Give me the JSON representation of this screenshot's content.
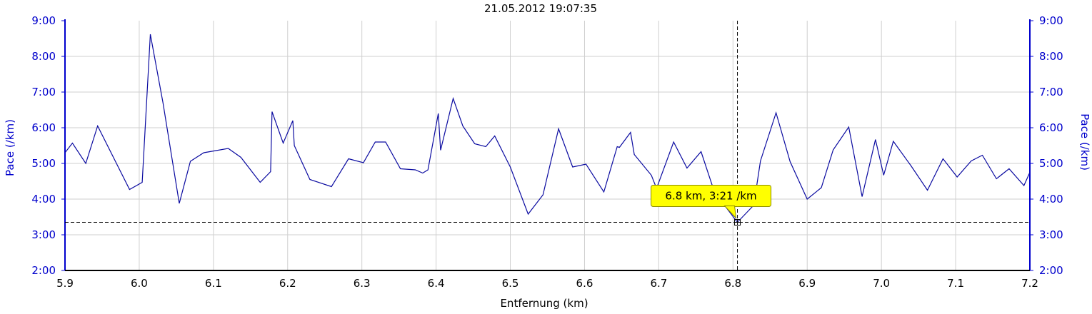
{
  "chart_data": {
    "type": "line",
    "title": "21.05.2012 19:07:35",
    "xlabel": "Entfernung (km)",
    "ylabel": "Pace (/km)",
    "y2label": "Pace (/km)",
    "xlim": [
      5.9,
      7.2
    ],
    "ylim": [
      2.0,
      9.0
    ],
    "x_ticks": [
      5.9,
      6.0,
      6.1,
      6.2,
      6.3,
      6.4,
      6.5,
      6.6,
      6.7,
      6.8,
      6.9,
      7.0,
      7.1,
      7.2
    ],
    "x_tick_labels": [
      "5.9",
      "6.0",
      "6.1",
      "6.2",
      "6.3",
      "6.4",
      "6.5",
      "6.6",
      "6.7",
      "6.8",
      "6.9",
      "7.0",
      "7.1",
      "7.2"
    ],
    "y_ticks": [
      2,
      3,
      4,
      5,
      6,
      7,
      8,
      9
    ],
    "y_tick_labels": [
      "2:00",
      "3:00",
      "4:00",
      "5:00",
      "6:00",
      "7:00",
      "8:00",
      "9:00"
    ],
    "grid": true,
    "series": [
      {
        "x": [
          5.9,
          5.91,
          5.928,
          5.944,
          5.987,
          6.004,
          6.015,
          6.032,
          6.054,
          6.069,
          6.087,
          6.12,
          6.137,
          6.163,
          6.177,
          6.179,
          6.194,
          6.207,
          6.209,
          6.23,
          6.259,
          6.282,
          6.302,
          6.318,
          6.332,
          6.352,
          6.372,
          6.382,
          6.389,
          6.403,
          6.406,
          6.423,
          6.436,
          6.452,
          6.467,
          6.479,
          6.5,
          6.524,
          6.544,
          6.565,
          6.584,
          6.602,
          6.626,
          6.644,
          6.647,
          6.662,
          6.667,
          6.69,
          6.697,
          6.72,
          6.738,
          6.757,
          6.775,
          6.806,
          6.828,
          6.837,
          6.858,
          6.877,
          6.9,
          6.919,
          6.935,
          6.956,
          6.974,
          6.992,
          7.003,
          7.016,
          7.04,
          7.062,
          7.083,
          7.102,
          7.121,
          7.136,
          7.155,
          7.172,
          7.192,
          7.2
        ],
        "y": [
          5.3,
          5.57,
          5.0,
          6.05,
          4.27,
          4.47,
          8.62,
          6.7,
          3.88,
          5.06,
          5.3,
          5.42,
          5.17,
          4.47,
          4.77,
          6.45,
          5.57,
          6.2,
          5.5,
          4.55,
          4.35,
          5.13,
          5.02,
          5.6,
          5.6,
          4.85,
          4.82,
          4.73,
          4.82,
          6.4,
          5.37,
          6.82,
          6.05,
          5.55,
          5.47,
          5.77,
          4.9,
          3.58,
          4.12,
          5.97,
          4.9,
          4.98,
          4.2,
          5.47,
          5.45,
          5.87,
          5.25,
          4.67,
          4.3,
          5.6,
          4.87,
          5.33,
          4.2,
          3.35,
          3.83,
          5.07,
          6.42,
          5.05,
          4.0,
          4.32,
          5.38,
          6.02,
          4.07,
          5.67,
          4.67,
          5.62,
          4.93,
          4.25,
          5.13,
          4.62,
          5.07,
          5.23,
          4.57,
          4.85,
          4.38,
          4.75
        ]
      }
    ],
    "crosshair": {
      "x": 6.806,
      "y": 3.35
    },
    "tooltip": "6.8 km, 3:21 /km",
    "colors": {
      "series": "#0a0aa0",
      "axis": "#0000cc",
      "grid": "#cfcfcf",
      "tooltip_bg": "#ffff00",
      "tooltip_border": "#8a8a00",
      "crosshair": "#000000"
    }
  }
}
